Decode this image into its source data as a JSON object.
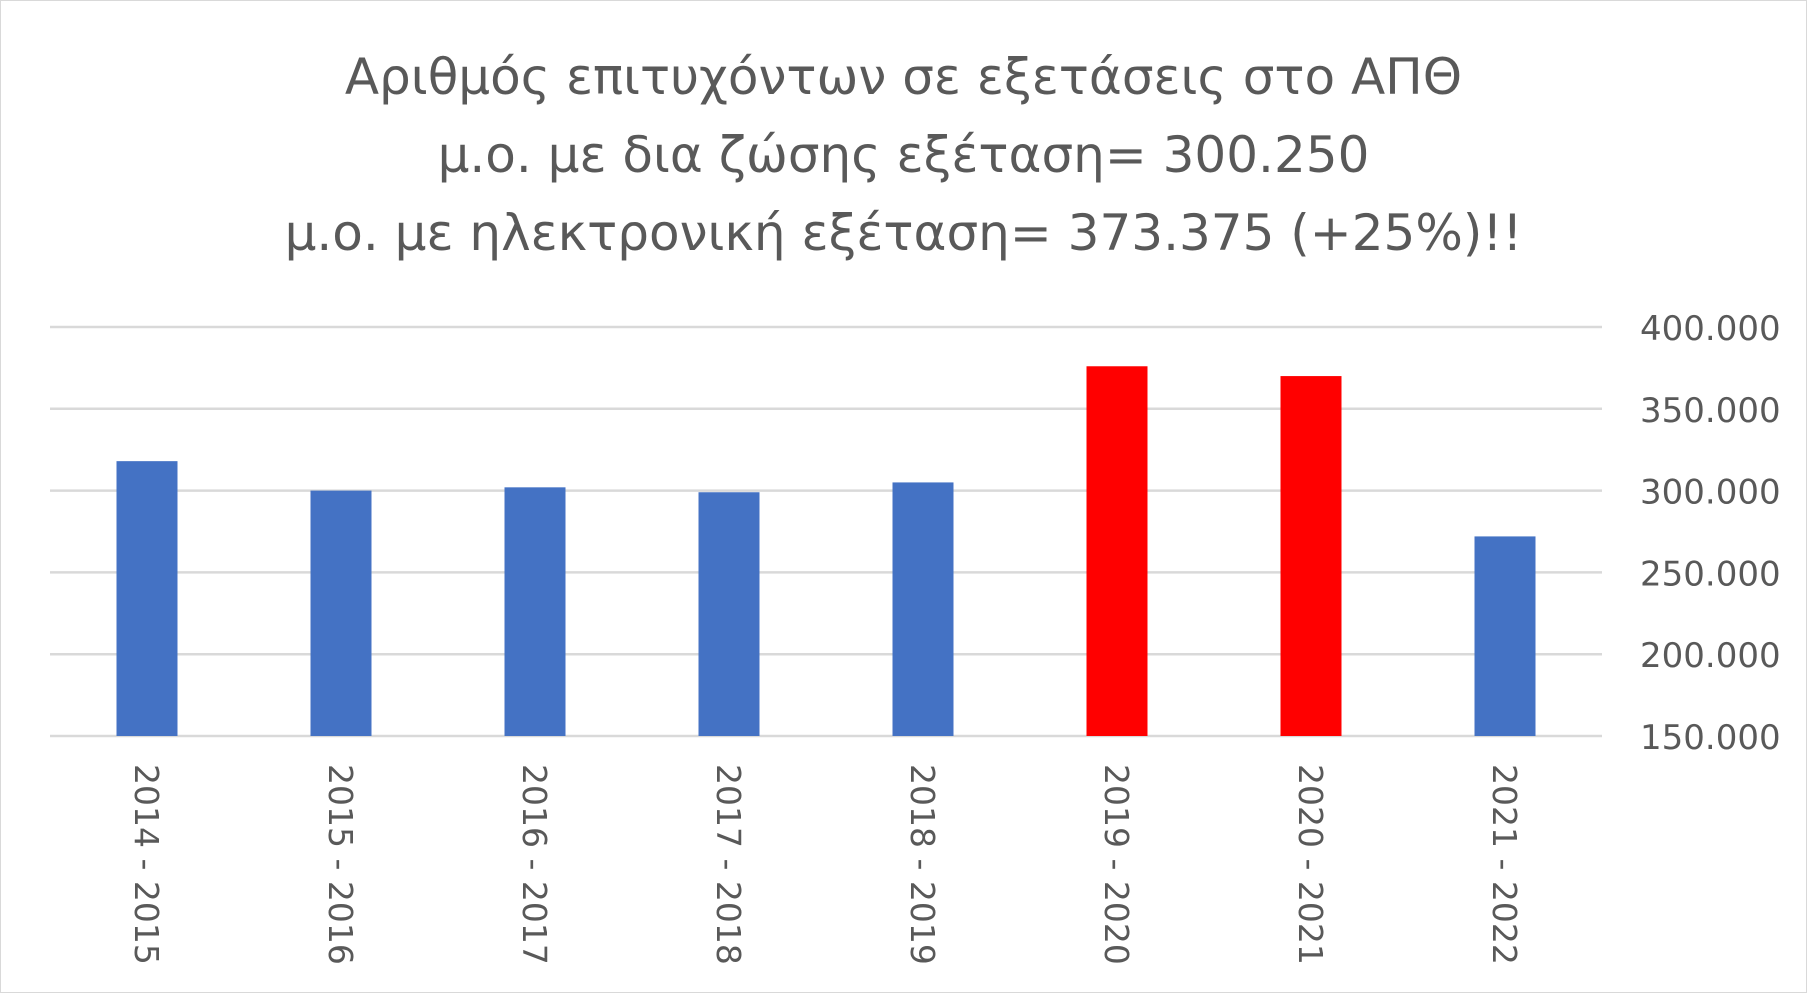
{
  "chart_data": {
    "type": "bar",
    "title_lines": [
      "Αριθμός επιτυχόντων σε εξετάσεις στο ΑΠΘ",
      "μ.ο. με δια ζώσης εξέταση= 300.250",
      "μ.ο. με ηλεκτρονική εξέταση= 373.375 (+25%)!!"
    ],
    "xlabel": "",
    "ylabel": "",
    "categories": [
      "2014 - 2015",
      "2015 - 2016",
      "2016 - 2017",
      "2017 - 2018",
      "2018 - 2019",
      "2019 - 2020",
      "2020 - 2021",
      "2021 - 2022"
    ],
    "values": [
      318000,
      300000,
      302000,
      299000,
      305000,
      376000,
      370000,
      272000
    ],
    "bar_colors": [
      "#4472c4",
      "#4472c4",
      "#4472c4",
      "#4472c4",
      "#4472c4",
      "#ff0000",
      "#ff0000",
      "#4472c4"
    ],
    "ylim": [
      150000,
      400000
    ],
    "yticks": [
      150000,
      200000,
      250000,
      300000,
      350000,
      400000
    ],
    "ytick_labels": [
      "150.000",
      "200.000",
      "250.000",
      "300.000",
      "350.000",
      "400.000"
    ],
    "y_axis_side": "right",
    "grid": true,
    "legend": "none"
  }
}
